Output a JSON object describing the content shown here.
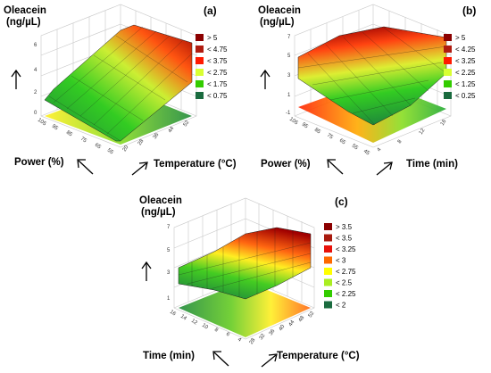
{
  "figure": {
    "panels": [
      {
        "id": "a",
        "panel_label": "(a)",
        "zlabel_line1": "Oleacein",
        "zlabel_line2": "(ng/µL)",
        "xlabel": "Temperature (°C)",
        "ylabel": "Power (%)",
        "z_ticks": [
          "0",
          "2",
          "4",
          "6"
        ],
        "x_ticks": [
          "20",
          "28",
          "36",
          "44",
          "52"
        ],
        "y_ticks": [
          "55",
          "65",
          "75",
          "85",
          "95",
          "105"
        ],
        "legend": [
          "> 5",
          "< 4.75",
          "< 3.75",
          "< 2.75",
          "< 1.75",
          "< 0.75"
        ],
        "legend_colors": [
          "#8b0000",
          "#b01c10",
          "#ff1a00",
          "#d9ff33",
          "#33cc00",
          "#1a6b3f"
        ]
      },
      {
        "id": "b",
        "panel_label": "(b)",
        "zlabel_line1": "Oleacein",
        "zlabel_line2": "(ng/µL)",
        "xlabel": "Time (min)",
        "ylabel": "Power (%)",
        "z_ticks": [
          "-1",
          "1",
          "3",
          "5",
          "7"
        ],
        "x_ticks": [
          "4",
          "8",
          "12",
          "16"
        ],
        "y_ticks": [
          "45",
          "55",
          "65",
          "75",
          "85",
          "95",
          "105"
        ],
        "legend": [
          "> 5",
          "< 4.25",
          "< 3.25",
          "< 2.25",
          "< 1.25",
          "< 0.25"
        ],
        "legend_colors": [
          "#8b0000",
          "#b01c10",
          "#ff1a00",
          "#d9ff33",
          "#33cc00",
          "#1a6b3f"
        ]
      },
      {
        "id": "c",
        "panel_label": "(c)",
        "zlabel_line1": "Oleacein",
        "zlabel_line2": "(ng/µL)",
        "xlabel": "Temperature (°C)",
        "ylabel": "Time (min)",
        "z_ticks": [
          "1",
          "3",
          "5",
          "7"
        ],
        "x_ticks": [
          "28",
          "32",
          "36",
          "40",
          "44",
          "48",
          "52"
        ],
        "y_ticks": [
          "4",
          "6",
          "8",
          "10",
          "12",
          "14",
          "16"
        ],
        "legend": [
          "> 3.5",
          "< 3.5",
          "< 3.25",
          "< 3",
          "< 2.75",
          "< 2.5",
          "< 2.25",
          "< 2"
        ],
        "legend_colors": [
          "#8b0000",
          "#a81a0e",
          "#e8120a",
          "#ff6a00",
          "#ffff00",
          "#aaee22",
          "#33cc00",
          "#1a6b3f"
        ]
      }
    ]
  }
}
